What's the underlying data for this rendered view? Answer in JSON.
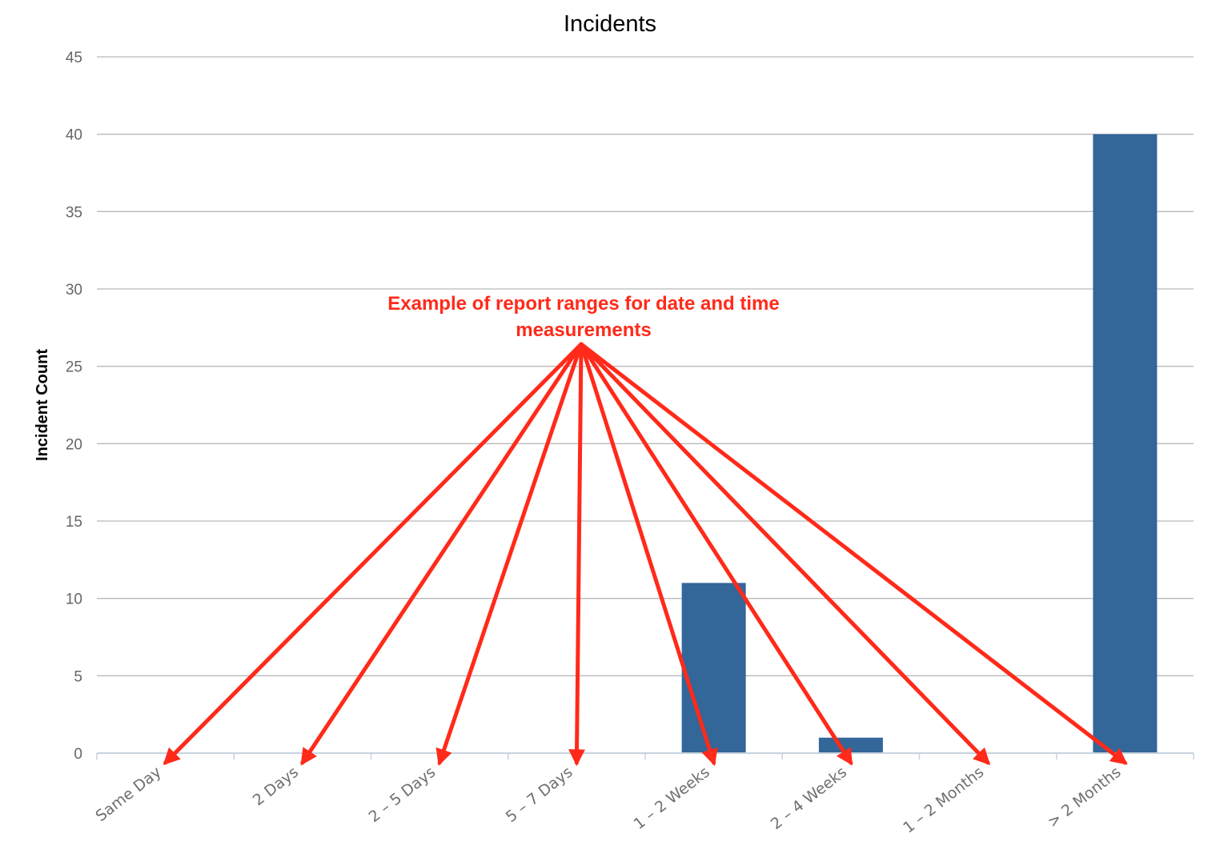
{
  "chart_data": {
    "type": "bar",
    "title": "Incidents",
    "xlabel": "",
    "ylabel": "Incident Count",
    "categories": [
      "Same Day",
      "2 Days",
      "2 – 5 Days",
      "5 – 7 Days",
      "1 – 2 Weeks",
      "2 – 4 Weeks",
      "1 – 2 Months",
      "> 2 Months"
    ],
    "values": [
      0,
      0,
      0,
      0,
      11,
      1,
      0,
      40
    ],
    "ylim": [
      0,
      45
    ],
    "yticks": [
      0,
      5,
      10,
      15,
      20,
      25,
      30,
      35,
      40,
      45
    ],
    "grid": true,
    "bar_color": "#336699",
    "annotation": {
      "lines": [
        "Example of report ranges for date and time",
        "measurements"
      ],
      "color": "#ff2a1a",
      "points_to": "all categories"
    }
  }
}
